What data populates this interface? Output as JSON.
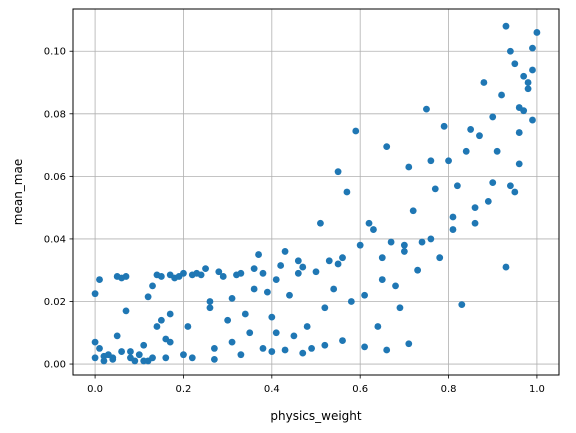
{
  "chart_data": {
    "type": "scatter",
    "xlabel": "physics_weight",
    "ylabel": "mean_mae",
    "xlim": [
      -0.05,
      1.05
    ],
    "ylim": [
      -0.0035,
      0.1135
    ],
    "xticks": [
      0.0,
      0.2,
      0.4,
      0.6,
      0.8,
      1.0
    ],
    "xtick_labels": [
      "0.0",
      "0.2",
      "0.4",
      "0.6",
      "0.8",
      "1.0"
    ],
    "yticks": [
      0.0,
      0.02,
      0.04,
      0.06,
      0.08,
      0.1
    ],
    "ytick_labels": [
      "0.00",
      "0.02",
      "0.04",
      "0.06",
      "0.08",
      "0.10"
    ],
    "grid": true,
    "point_color": "#1f77b4",
    "points": [
      [
        0.0,
        0.0225
      ],
      [
        0.01,
        0.027
      ],
      [
        0.0,
        0.007
      ],
      [
        0.01,
        0.005
      ],
      [
        0.0,
        0.002
      ],
      [
        0.02,
        0.001
      ],
      [
        0.03,
        0.003
      ],
      [
        0.04,
        0.002
      ],
      [
        0.05,
        0.028
      ],
      [
        0.07,
        0.028
      ],
      [
        0.06,
        0.0275
      ],
      [
        0.05,
        0.009
      ],
      [
        0.06,
        0.004
      ],
      [
        0.07,
        0.017
      ],
      [
        0.08,
        0.002
      ],
      [
        0.09,
        0.001
      ],
      [
        0.1,
        0.003
      ],
      [
        0.11,
        0.006
      ],
      [
        0.12,
        0.001
      ],
      [
        0.13,
        0.002
      ],
      [
        0.12,
        0.0215
      ],
      [
        0.13,
        0.025
      ],
      [
        0.14,
        0.0285
      ],
      [
        0.15,
        0.028
      ],
      [
        0.14,
        0.012
      ],
      [
        0.15,
        0.014
      ],
      [
        0.16,
        0.008
      ],
      [
        0.17,
        0.007
      ],
      [
        0.17,
        0.0285
      ],
      [
        0.18,
        0.0275
      ],
      [
        0.19,
        0.028
      ],
      [
        0.2,
        0.029
      ],
      [
        0.2,
        0.003
      ],
      [
        0.21,
        0.012
      ],
      [
        0.22,
        0.0285
      ],
      [
        0.23,
        0.029
      ],
      [
        0.24,
        0.0285
      ],
      [
        0.25,
        0.0305
      ],
      [
        0.26,
        0.02
      ],
      [
        0.27,
        0.005
      ],
      [
        0.28,
        0.0295
      ],
      [
        0.29,
        0.028
      ],
      [
        0.3,
        0.014
      ],
      [
        0.31,
        0.007
      ],
      [
        0.32,
        0.0285
      ],
      [
        0.33,
        0.029
      ],
      [
        0.34,
        0.016
      ],
      [
        0.35,
        0.01
      ],
      [
        0.36,
        0.0305
      ],
      [
        0.37,
        0.035
      ],
      [
        0.38,
        0.029
      ],
      [
        0.39,
        0.023
      ],
      [
        0.4,
        0.015
      ],
      [
        0.4,
        0.004
      ],
      [
        0.41,
        0.01
      ],
      [
        0.42,
        0.0315
      ],
      [
        0.43,
        0.036
      ],
      [
        0.44,
        0.022
      ],
      [
        0.45,
        0.009
      ],
      [
        0.46,
        0.033
      ],
      [
        0.47,
        0.031
      ],
      [
        0.48,
        0.012
      ],
      [
        0.49,
        0.005
      ],
      [
        0.5,
        0.0295
      ],
      [
        0.51,
        0.045
      ],
      [
        0.52,
        0.018
      ],
      [
        0.53,
        0.033
      ],
      [
        0.54,
        0.024
      ],
      [
        0.55,
        0.0615
      ],
      [
        0.56,
        0.034
      ],
      [
        0.57,
        0.055
      ],
      [
        0.58,
        0.02
      ],
      [
        0.59,
        0.0745
      ],
      [
        0.6,
        0.038
      ],
      [
        0.61,
        0.022
      ],
      [
        0.62,
        0.045
      ],
      [
        0.63,
        0.043
      ],
      [
        0.64,
        0.012
      ],
      [
        0.65,
        0.027
      ],
      [
        0.66,
        0.0695
      ],
      [
        0.67,
        0.039
      ],
      [
        0.68,
        0.025
      ],
      [
        0.69,
        0.018
      ],
      [
        0.7,
        0.038
      ],
      [
        0.71,
        0.063
      ],
      [
        0.72,
        0.049
      ],
      [
        0.73,
        0.03
      ],
      [
        0.74,
        0.039
      ],
      [
        0.75,
        0.0815
      ],
      [
        0.76,
        0.065
      ],
      [
        0.77,
        0.056
      ],
      [
        0.78,
        0.034
      ],
      [
        0.79,
        0.076
      ],
      [
        0.8,
        0.065
      ],
      [
        0.81,
        0.047
      ],
      [
        0.82,
        0.057
      ],
      [
        0.83,
        0.019
      ],
      [
        0.84,
        0.068
      ],
      [
        0.85,
        0.075
      ],
      [
        0.86,
        0.05
      ],
      [
        0.87,
        0.073
      ],
      [
        0.88,
        0.09
      ],
      [
        0.89,
        0.052
      ],
      [
        0.9,
        0.079
      ],
      [
        0.91,
        0.068
      ],
      [
        0.92,
        0.086
      ],
      [
        0.93,
        0.108
      ],
      [
        0.94,
        0.1
      ],
      [
        0.95,
        0.096
      ],
      [
        0.96,
        0.082
      ],
      [
        0.97,
        0.092
      ],
      [
        0.98,
        0.09
      ],
      [
        0.99,
        0.101
      ],
      [
        1.0,
        0.106
      ],
      [
        0.99,
        0.094
      ],
      [
        0.97,
        0.081
      ],
      [
        0.96,
        0.064
      ],
      [
        0.95,
        0.055
      ],
      [
        0.94,
        0.057
      ],
      [
        0.93,
        0.031
      ],
      [
        0.02,
        0.0025
      ],
      [
        0.04,
        0.0015
      ],
      [
        0.08,
        0.004
      ],
      [
        0.11,
        0.001
      ],
      [
        0.16,
        0.002
      ],
      [
        0.22,
        0.002
      ],
      [
        0.27,
        0.0015
      ],
      [
        0.33,
        0.003
      ],
      [
        0.38,
        0.005
      ],
      [
        0.43,
        0.0045
      ],
      [
        0.47,
        0.0035
      ],
      [
        0.52,
        0.006
      ],
      [
        0.56,
        0.0075
      ],
      [
        0.61,
        0.0055
      ],
      [
        0.66,
        0.0045
      ],
      [
        0.71,
        0.0065
      ],
      [
        0.17,
        0.016
      ],
      [
        0.26,
        0.018
      ],
      [
        0.31,
        0.021
      ],
      [
        0.36,
        0.024
      ],
      [
        0.41,
        0.027
      ],
      [
        0.46,
        0.029
      ],
      [
        0.55,
        0.032
      ],
      [
        0.65,
        0.034
      ],
      [
        0.7,
        0.036
      ],
      [
        0.76,
        0.04
      ],
      [
        0.81,
        0.043
      ],
      [
        0.86,
        0.045
      ],
      [
        0.9,
        0.058
      ],
      [
        0.96,
        0.074
      ],
      [
        0.98,
        0.088
      ],
      [
        0.99,
        0.078
      ]
    ]
  }
}
